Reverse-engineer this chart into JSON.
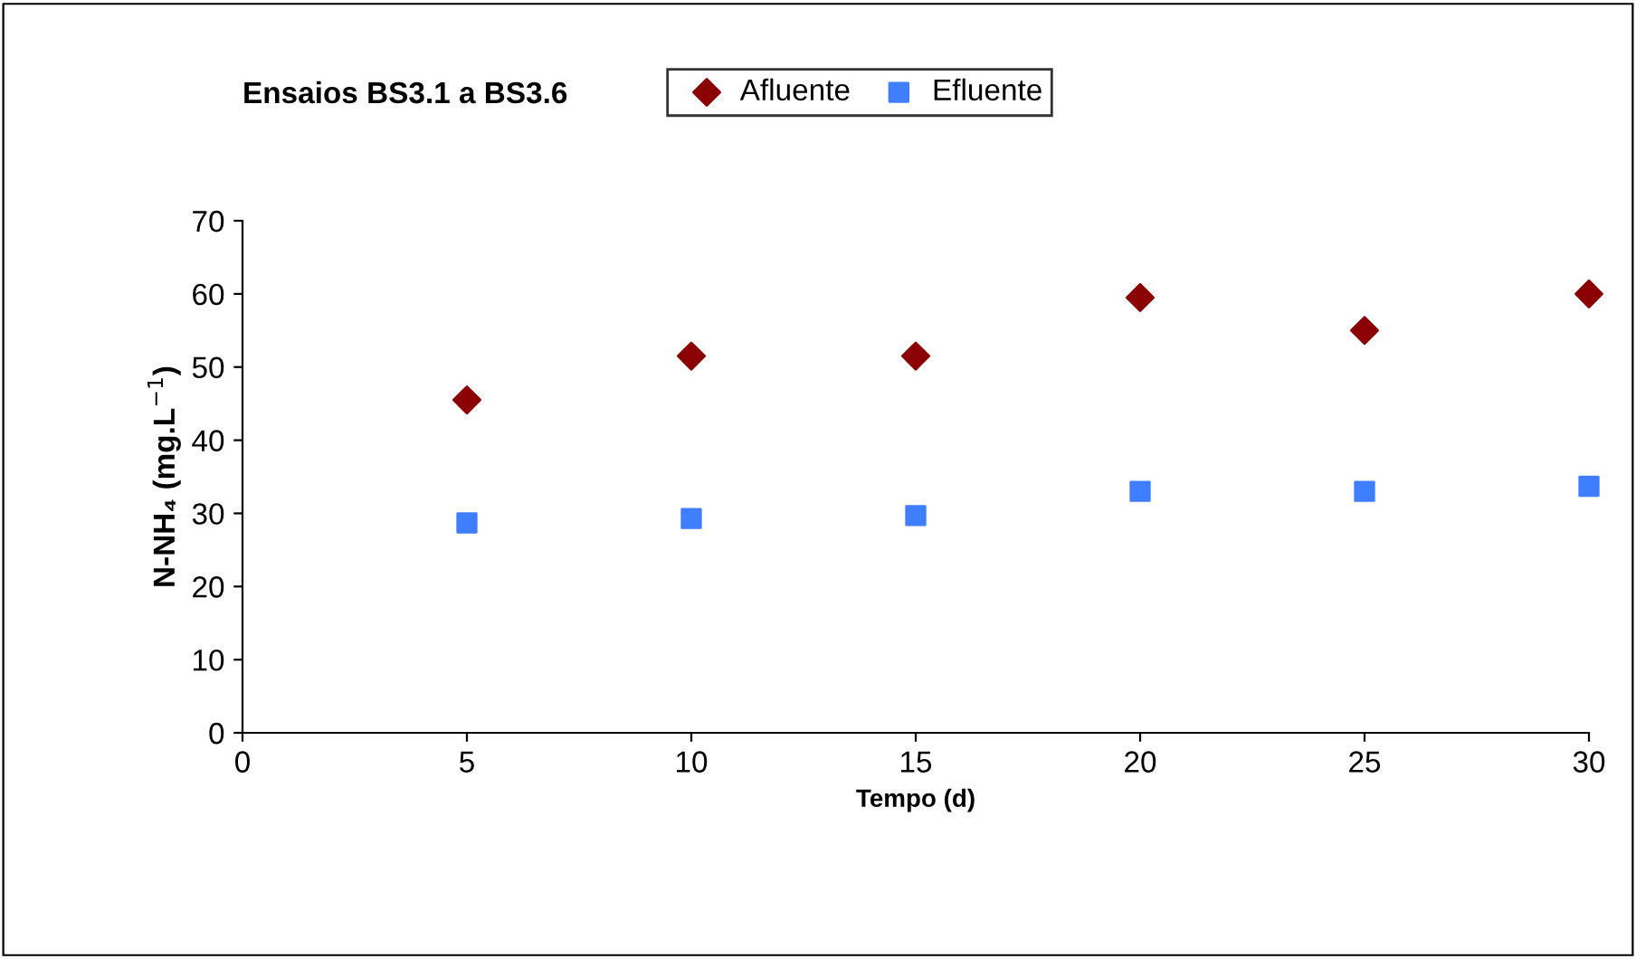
{
  "chart_data": {
    "type": "scatter",
    "title": "Ensaios BS3.1 a BS3.6",
    "xlabel": "Tempo (d)",
    "ylabel": "N-NH₄ (mg.L$^{−1}$)",
    "x": [
      5,
      10,
      15,
      20,
      25,
      30
    ],
    "series": [
      {
        "name": "Afluente",
        "color": "#8b0000",
        "marker": "diamond",
        "values": [
          45.5,
          51.5,
          51.5,
          59.5,
          55,
          60
        ]
      },
      {
        "name": "Efluente",
        "color": "#3f7fff",
        "marker": "square",
        "values": [
          28.7,
          29.3,
          29.7,
          33,
          33,
          33.7
        ]
      }
    ],
    "xlim": [
      0,
      30
    ],
    "xticks": [
      0,
      5,
      10,
      15,
      20,
      25,
      30
    ],
    "ylim": [
      0,
      70
    ],
    "yticks": [
      0,
      10,
      20,
      30,
      40,
      50,
      60,
      70
    ],
    "grid": false,
    "legend": "top"
  }
}
